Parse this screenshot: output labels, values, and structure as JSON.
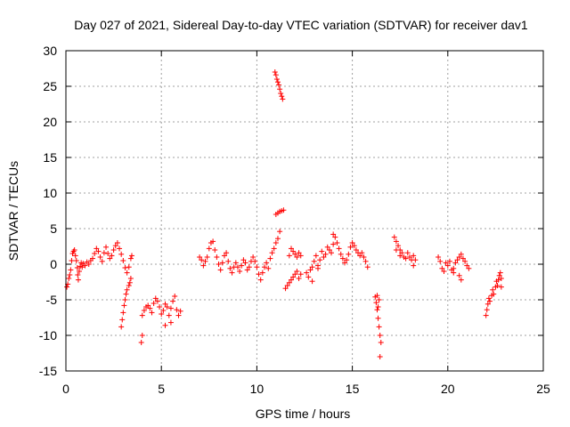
{
  "chart_data": {
    "type": "scatter",
    "title": "Day 027 of 2021, Sidereal Day-to-day VTEC variation (SDTVAR) for receiver dav1",
    "xlabel": "GPS time / hours",
    "ylabel": "SDTVAR / TECUs",
    "xlim": [
      0,
      25
    ],
    "ylim": [
      -15,
      30
    ],
    "xticks": [
      0,
      5,
      10,
      15,
      20,
      25
    ],
    "yticks": [
      -15,
      -10,
      -5,
      0,
      5,
      10,
      15,
      20,
      25,
      30
    ],
    "grid": true,
    "marker": "+",
    "color": "#ff0000",
    "series": [
      {
        "name": "SDTVAR",
        "points": [
          [
            0.05,
            -3.2
          ],
          [
            0.1,
            -2.8
          ],
          [
            0.15,
            -2.0
          ],
          [
            0.2,
            -1.5
          ],
          [
            0.25,
            -0.8
          ],
          [
            0.3,
            0.5
          ],
          [
            0.35,
            1.5
          ],
          [
            0.4,
            1.8
          ],
          [
            0.45,
            2.0
          ],
          [
            0.5,
            1.2
          ],
          [
            0.55,
            0.5
          ],
          [
            0.6,
            -0.5
          ],
          [
            0.62,
            -1.5
          ],
          [
            0.65,
            -2.2
          ],
          [
            0.7,
            -1.0
          ],
          [
            0.75,
            -0.3
          ],
          [
            0.8,
            0.2
          ],
          [
            0.85,
            -0.4
          ],
          [
            0.9,
            0.1
          ],
          [
            1.0,
            -0.2
          ],
          [
            1.1,
            0.3
          ],
          [
            1.2,
            0.0
          ],
          [
            1.3,
            0.5
          ],
          [
            1.4,
            0.8
          ],
          [
            1.5,
            1.5
          ],
          [
            1.6,
            2.2
          ],
          [
            1.7,
            1.8
          ],
          [
            1.8,
            1.0
          ],
          [
            1.9,
            0.4
          ],
          [
            2.0,
            1.6
          ],
          [
            2.1,
            2.4
          ],
          [
            2.2,
            1.5
          ],
          [
            2.3,
            0.8
          ],
          [
            2.4,
            1.2
          ],
          [
            2.5,
            2.0
          ],
          [
            2.6,
            2.6
          ],
          [
            2.7,
            3.0
          ],
          [
            2.8,
            2.2
          ],
          [
            2.9,
            1.4
          ],
          [
            3.0,
            0.5
          ],
          [
            3.1,
            -0.5
          ],
          [
            3.2,
            -1.2
          ],
          [
            3.3,
            -0.4
          ],
          [
            3.4,
            0.8
          ],
          [
            3.45,
            1.2
          ],
          [
            2.9,
            -8.8
          ],
          [
            2.95,
            -7.8
          ],
          [
            3.0,
            -6.8
          ],
          [
            3.05,
            -5.8
          ],
          [
            3.1,
            -5.0
          ],
          [
            3.15,
            -4.2
          ],
          [
            3.2,
            -3.6
          ],
          [
            3.3,
            -3.0
          ],
          [
            3.35,
            -2.6
          ],
          [
            3.4,
            -2.0
          ],
          [
            3.95,
            -11.0
          ],
          [
            4.0,
            -10.0
          ],
          [
            4.0,
            -7.2
          ],
          [
            4.1,
            -6.5
          ],
          [
            4.2,
            -6.0
          ],
          [
            4.3,
            -5.8
          ],
          [
            4.4,
            -6.2
          ],
          [
            4.5,
            -6.8
          ],
          [
            4.6,
            -5.5
          ],
          [
            4.7,
            -4.8
          ],
          [
            4.8,
            -5.2
          ],
          [
            4.9,
            -6.0
          ],
          [
            5.0,
            -7.0
          ],
          [
            5.1,
            -6.5
          ],
          [
            5.2,
            -5.6
          ],
          [
            5.3,
            -6.0
          ],
          [
            5.4,
            -7.2
          ],
          [
            5.5,
            -6.2
          ],
          [
            5.6,
            -5.2
          ],
          [
            5.7,
            -4.5
          ],
          [
            5.8,
            -6.4
          ],
          [
            5.9,
            -7.2
          ],
          [
            6.0,
            -6.6
          ],
          [
            5.2,
            -8.6
          ],
          [
            5.5,
            -8.2
          ],
          [
            7.0,
            1.0
          ],
          [
            7.1,
            0.6
          ],
          [
            7.2,
            -0.2
          ],
          [
            7.3,
            0.4
          ],
          [
            7.4,
            1.0
          ],
          [
            7.5,
            2.2
          ],
          [
            7.6,
            3.0
          ],
          [
            7.7,
            3.2
          ],
          [
            7.8,
            2.0
          ],
          [
            7.9,
            1.0
          ],
          [
            8.0,
            0.0
          ],
          [
            8.1,
            -0.8
          ],
          [
            8.2,
            0.2
          ],
          [
            8.3,
            1.2
          ],
          [
            8.4,
            1.6
          ],
          [
            8.5,
            0.4
          ],
          [
            8.6,
            -0.6
          ],
          [
            8.7,
            -1.2
          ],
          [
            8.8,
            -0.4
          ],
          [
            8.9,
            0.2
          ],
          [
            9.0,
            -0.4
          ],
          [
            9.1,
            -1.0
          ],
          [
            9.2,
            -0.2
          ],
          [
            9.3,
            0.6
          ],
          [
            9.4,
            0.2
          ],
          [
            9.5,
            -0.8
          ],
          [
            9.6,
            -0.4
          ],
          [
            9.7,
            0.4
          ],
          [
            9.8,
            1.0
          ],
          [
            9.9,
            0.4
          ],
          [
            10.0,
            -0.4
          ],
          [
            10.1,
            -1.4
          ],
          [
            10.2,
            -2.2
          ],
          [
            10.3,
            -1.2
          ],
          [
            10.4,
            -0.4
          ],
          [
            10.5,
            0.2
          ],
          [
            10.6,
            -0.6
          ],
          [
            10.7,
            0.8
          ],
          [
            10.8,
            1.6
          ],
          [
            10.9,
            2.2
          ],
          [
            11.0,
            3.0
          ],
          [
            11.1,
            3.6
          ],
          [
            11.2,
            4.6
          ],
          [
            10.95,
            27.0
          ],
          [
            11.0,
            26.6
          ],
          [
            11.05,
            26.0
          ],
          [
            11.1,
            25.6
          ],
          [
            11.15,
            25.2
          ],
          [
            11.2,
            24.6
          ],
          [
            11.25,
            24.0
          ],
          [
            11.3,
            23.6
          ],
          [
            11.35,
            23.2
          ],
          [
            11.0,
            7.0
          ],
          [
            11.1,
            7.2
          ],
          [
            11.2,
            7.4
          ],
          [
            11.3,
            7.5
          ],
          [
            11.4,
            7.6
          ],
          [
            11.5,
            -3.4
          ],
          [
            11.6,
            -3.0
          ],
          [
            11.7,
            -2.6
          ],
          [
            11.8,
            -2.2
          ],
          [
            11.9,
            -1.8
          ],
          [
            12.0,
            -1.4
          ],
          [
            12.1,
            -1.0
          ],
          [
            12.2,
            -2.0
          ],
          [
            12.3,
            -1.4
          ],
          [
            11.7,
            1.2
          ],
          [
            11.8,
            2.2
          ],
          [
            11.9,
            1.8
          ],
          [
            12.0,
            1.4
          ],
          [
            12.1,
            1.0
          ],
          [
            12.2,
            1.6
          ],
          [
            12.3,
            1.2
          ],
          [
            12.6,
            -1.2
          ],
          [
            12.7,
            -1.8
          ],
          [
            12.8,
            -0.8
          ],
          [
            12.9,
            -0.4
          ],
          [
            13.0,
            0.4
          ],
          [
            13.1,
            1.2
          ],
          [
            13.2,
            -0.2
          ],
          [
            13.3,
            0.6
          ],
          [
            13.4,
            1.8
          ],
          [
            13.5,
            1.0
          ],
          [
            13.6,
            1.4
          ],
          [
            13.7,
            2.4
          ],
          [
            13.8,
            2.0
          ],
          [
            13.9,
            1.6
          ],
          [
            14.0,
            2.8
          ],
          [
            14.1,
            3.8
          ],
          [
            14.2,
            3.0
          ],
          [
            14.3,
            2.2
          ],
          [
            14.4,
            1.4
          ],
          [
            14.5,
            0.8
          ],
          [
            14.6,
            0.2
          ],
          [
            14.7,
            0.6
          ],
          [
            14.8,
            1.4
          ],
          [
            14.9,
            2.4
          ],
          [
            15.0,
            3.0
          ],
          [
            15.1,
            2.6
          ],
          [
            15.2,
            2.0
          ],
          [
            15.3,
            1.6
          ],
          [
            15.4,
            1.2
          ],
          [
            15.5,
            1.6
          ],
          [
            15.6,
            1.0
          ],
          [
            15.7,
            0.4
          ],
          [
            15.8,
            -0.4
          ],
          [
            14.0,
            4.2
          ],
          [
            12.9,
            -2.4
          ],
          [
            13.2,
            -0.6
          ],
          [
            16.2,
            -4.6
          ],
          [
            16.25,
            -5.4
          ],
          [
            16.3,
            -6.4
          ],
          [
            16.35,
            -7.6
          ],
          [
            16.4,
            -8.8
          ],
          [
            16.45,
            -10.0
          ],
          [
            16.5,
            -11.0
          ],
          [
            16.45,
            -13.0
          ],
          [
            16.3,
            -4.4
          ],
          [
            16.4,
            -5.0
          ],
          [
            16.35,
            -6.0
          ],
          [
            17.2,
            3.8
          ],
          [
            17.3,
            3.2
          ],
          [
            17.4,
            2.6
          ],
          [
            17.5,
            2.0
          ],
          [
            17.6,
            1.6
          ],
          [
            17.7,
            1.0
          ],
          [
            17.8,
            0.8
          ],
          [
            17.9,
            1.6
          ],
          [
            18.0,
            1.0
          ],
          [
            18.1,
            0.6
          ],
          [
            18.2,
            1.2
          ],
          [
            18.3,
            0.6
          ],
          [
            18.2,
            -0.2
          ],
          [
            17.3,
            2.0
          ],
          [
            17.5,
            1.2
          ],
          [
            19.5,
            1.0
          ],
          [
            19.6,
            0.4
          ],
          [
            19.7,
            -0.6
          ],
          [
            19.8,
            -1.0
          ],
          [
            19.9,
            0.2
          ],
          [
            20.0,
            -0.2
          ],
          [
            20.1,
            0.4
          ],
          [
            20.2,
            -0.8
          ],
          [
            20.3,
            -0.6
          ],
          [
            20.4,
            0.2
          ],
          [
            20.5,
            0.6
          ],
          [
            20.6,
            1.0
          ],
          [
            20.7,
            1.4
          ],
          [
            20.8,
            0.8
          ],
          [
            20.9,
            0.4
          ],
          [
            21.0,
            -0.2
          ],
          [
            21.1,
            -0.6
          ],
          [
            20.6,
            -1.6
          ],
          [
            20.7,
            -2.2
          ],
          [
            20.3,
            -1.2
          ],
          [
            22.0,
            -7.2
          ],
          [
            22.05,
            -6.4
          ],
          [
            22.1,
            -5.6
          ],
          [
            22.15,
            -4.8
          ],
          [
            22.2,
            -5.2
          ],
          [
            22.3,
            -4.4
          ],
          [
            22.35,
            -3.6
          ],
          [
            22.4,
            -4.2
          ],
          [
            22.5,
            -3.2
          ],
          [
            22.55,
            -2.4
          ],
          [
            22.6,
            -3.0
          ],
          [
            22.65,
            -2.2
          ],
          [
            22.7,
            -1.6
          ],
          [
            22.75,
            -1.2
          ],
          [
            22.8,
            -2.0
          ],
          [
            22.8,
            -3.2
          ]
        ]
      }
    ]
  }
}
